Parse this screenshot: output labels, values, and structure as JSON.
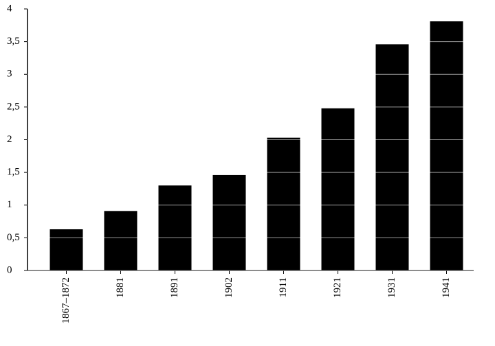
{
  "chart_data": {
    "type": "bar",
    "categories": [
      "1867–1872",
      "1881",
      "1891",
      "1902",
      "1911",
      "1921",
      "1931",
      "1941"
    ],
    "values": [
      0.63,
      0.91,
      1.3,
      1.46,
      2.03,
      2.48,
      3.46,
      3.81
    ],
    "color": "#000000",
    "ylim": [
      0,
      4
    ],
    "yticks": [
      0,
      {
        "value": 0.5,
        "label": "0,5"
      },
      1,
      {
        "value": 1.5,
        "label": "1,5"
      },
      2,
      {
        "value": 2.5,
        "label": "2,5"
      },
      3,
      {
        "value": 3.5,
        "label": "3,5"
      },
      4
    ],
    "grid": true
  }
}
